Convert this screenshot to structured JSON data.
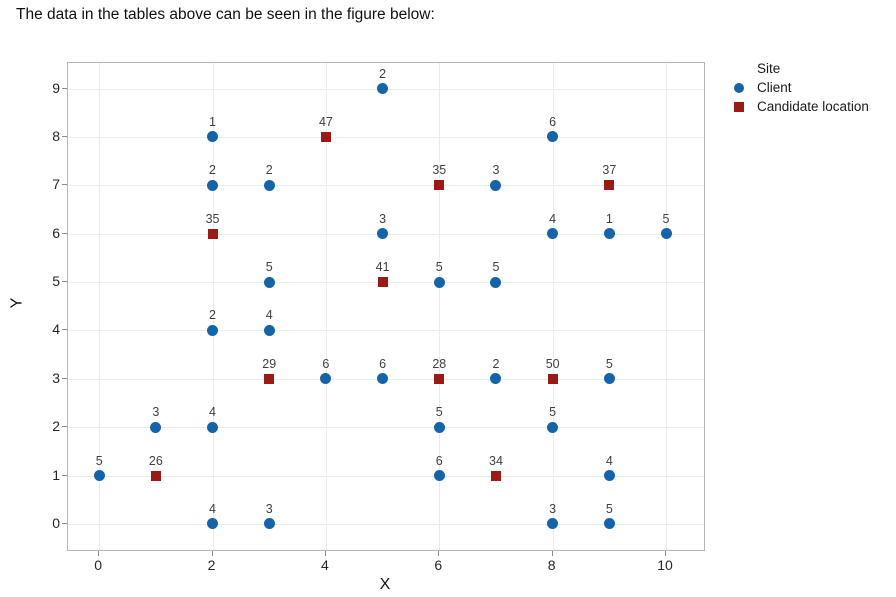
{
  "page": {
    "title": "The data in the tables above can be seen in the figure below:"
  },
  "chart_data": {
    "type": "scatter",
    "title": "",
    "xlabel": "X",
    "ylabel": "Y",
    "xticks": [
      0,
      2,
      4,
      6,
      8,
      10
    ],
    "yticks": [
      0,
      1,
      2,
      3,
      4,
      5,
      6,
      7,
      8,
      9
    ],
    "xlim": [
      -0.55,
      10.67
    ],
    "ylim": [
      -0.54,
      9.53
    ],
    "grid": true,
    "point_label_color": "#3f3f3f",
    "legend": {
      "title": "Site",
      "position": "top-right",
      "entries": [
        {
          "label": "Client",
          "marker": "circle",
          "color": "#1563a8"
        },
        {
          "label": "Candidate location",
          "marker": "square",
          "color": "#9b1a13"
        }
      ]
    },
    "series": [
      {
        "name": "Client",
        "marker": "circle",
        "color": "#1563a8",
        "points": [
          {
            "x": 0,
            "y": 1,
            "label": "5"
          },
          {
            "x": 1,
            "y": 2,
            "label": "3"
          },
          {
            "x": 2,
            "y": 0,
            "label": "4"
          },
          {
            "x": 2,
            "y": 2,
            "label": "4"
          },
          {
            "x": 2,
            "y": 4,
            "label": "2"
          },
          {
            "x": 2,
            "y": 7,
            "label": "2"
          },
          {
            "x": 2,
            "y": 8,
            "label": "1"
          },
          {
            "x": 3,
            "y": 0,
            "label": "3"
          },
          {
            "x": 3,
            "y": 4,
            "label": "4"
          },
          {
            "x": 3,
            "y": 5,
            "label": "5"
          },
          {
            "x": 3,
            "y": 7,
            "label": "2"
          },
          {
            "x": 4,
            "y": 3,
            "label": "6"
          },
          {
            "x": 5,
            "y": 3,
            "label": "6"
          },
          {
            "x": 5,
            "y": 6,
            "label": "3"
          },
          {
            "x": 5,
            "y": 9,
            "label": "2"
          },
          {
            "x": 6,
            "y": 1,
            "label": "6"
          },
          {
            "x": 6,
            "y": 2,
            "label": "5"
          },
          {
            "x": 6,
            "y": 5,
            "label": "5"
          },
          {
            "x": 7,
            "y": 3,
            "label": "2"
          },
          {
            "x": 7,
            "y": 5,
            "label": "5"
          },
          {
            "x": 7,
            "y": 7,
            "label": "3"
          },
          {
            "x": 8,
            "y": 0,
            "label": "3"
          },
          {
            "x": 8,
            "y": 2,
            "label": "5"
          },
          {
            "x": 8,
            "y": 6,
            "label": "4"
          },
          {
            "x": 8,
            "y": 8,
            "label": "6"
          },
          {
            "x": 9,
            "y": 0,
            "label": "5"
          },
          {
            "x": 9,
            "y": 1,
            "label": "4"
          },
          {
            "x": 9,
            "y": 3,
            "label": "5"
          },
          {
            "x": 9,
            "y": 6,
            "label": "1"
          },
          {
            "x": 10,
            "y": 6,
            "label": "5"
          }
        ]
      },
      {
        "name": "Candidate location",
        "marker": "square",
        "color": "#9b1a13",
        "points": [
          {
            "x": 1,
            "y": 1,
            "label": "26"
          },
          {
            "x": 2,
            "y": 6,
            "label": "35"
          },
          {
            "x": 3,
            "y": 3,
            "label": "29"
          },
          {
            "x": 4,
            "y": 8,
            "label": "47"
          },
          {
            "x": 5,
            "y": 5,
            "label": "41"
          },
          {
            "x": 6,
            "y": 3,
            "label": "28"
          },
          {
            "x": 6,
            "y": 7,
            "label": "35"
          },
          {
            "x": 7,
            "y": 1,
            "label": "34"
          },
          {
            "x": 8,
            "y": 3,
            "label": "50"
          },
          {
            "x": 9,
            "y": 7,
            "label": "37"
          }
        ]
      }
    ]
  }
}
